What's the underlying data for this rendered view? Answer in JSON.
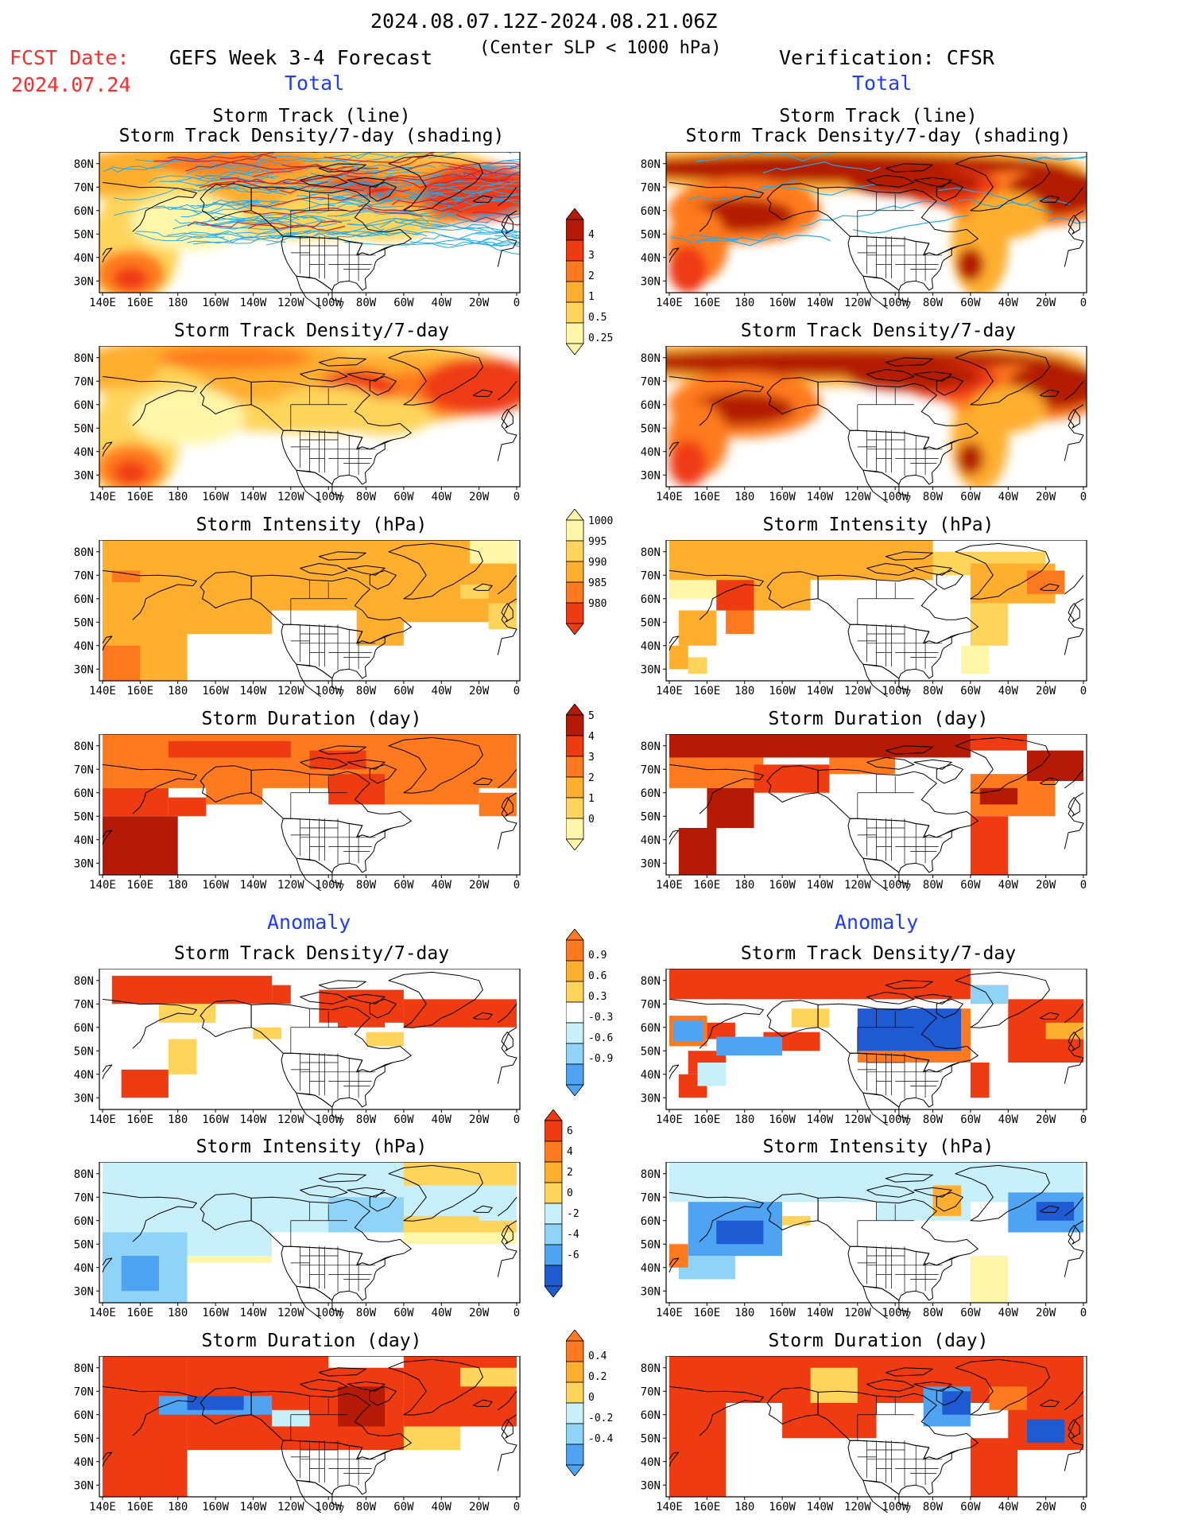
{
  "header": {
    "date_range": "2024.08.07.12Z-2024.08.21.06Z",
    "fcst_label": "FCST Date:",
    "fcst_date": "2024.07.24",
    "forecast_title": "GEFS Week 3-4 Forecast",
    "criterion": "(Center SLP < 1000 hPa)",
    "verification": "Verification: CFSR",
    "total_left": "Total",
    "total_right": "Total",
    "anomaly_left": "Anomaly",
    "anomaly_right": "Anomaly"
  },
  "titles": {
    "track_line": "Storm Track (line)",
    "track_density_shading": "Storm Track Density/7-day (shading)",
    "track_density": "Storm Track Density/7-day",
    "intensity": "Storm Intensity (hPa)",
    "duration": "Storm Duration (day)"
  },
  "colors": {
    "c0": "#fff6a8",
    "c1": "#ffd45a",
    "c2": "#ffae2e",
    "c3": "#ff7a1e",
    "c4": "#ef3b12",
    "c5": "#b41a06",
    "n1": "#c8f0fa",
    "n2": "#8fd4f8",
    "n3": "#4ea4f2",
    "n4": "#1e5ad2",
    "track": "#22aaee",
    "track_dark": "#cc2233"
  },
  "chart_data": {
    "type": "heatmap",
    "x_ticks": [
      "140E",
      "160E",
      "180",
      "160W",
      "140W",
      "120W",
      "100W",
      "80W",
      "60W",
      "40W",
      "20W",
      "0"
    ],
    "y_ticks": [
      "80N",
      "70N",
      "60N",
      "50N",
      "40N",
      "30N"
    ],
    "colorbars": [
      {
        "id": "density_total",
        "labels": [
          "4",
          "3",
          "2",
          "1",
          "0.5",
          "0.25"
        ]
      },
      {
        "id": "intensity_total",
        "labels": [
          "1000",
          "995",
          "990",
          "985",
          "980"
        ]
      },
      {
        "id": "duration_total",
        "labels": [
          "5",
          "4",
          "3",
          "2",
          "1",
          "0"
        ]
      },
      {
        "id": "density_anom",
        "labels": [
          "0.9",
          "0.6",
          "0.3",
          "-0.3",
          "-0.6",
          "-0.9"
        ]
      },
      {
        "id": "intensity_anom",
        "labels": [
          "6",
          "4",
          "2",
          "0",
          "-2",
          "-4",
          "-6"
        ]
      },
      {
        "id": "duration_anom",
        "labels": [
          "0.4",
          "0.2",
          "0",
          "-0.2",
          "-0.4"
        ]
      }
    ]
  }
}
